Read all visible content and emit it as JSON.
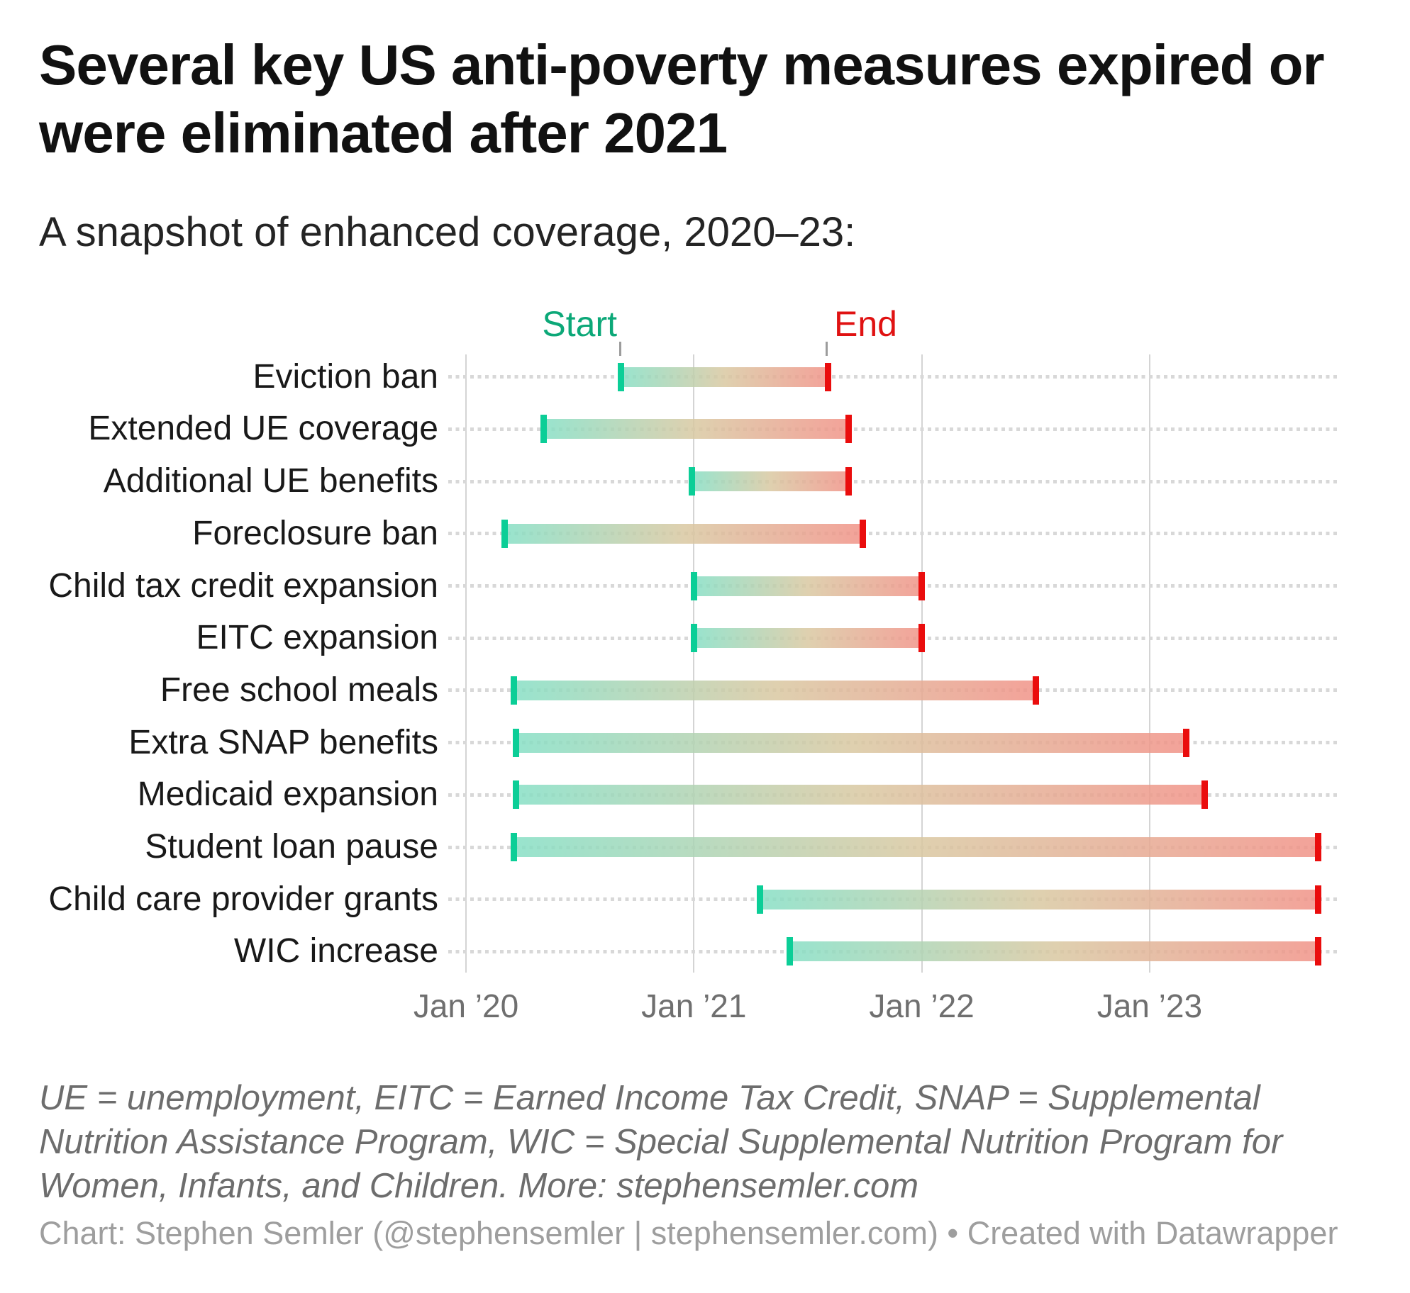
{
  "header": {
    "title": "Several key US anti-poverty measures expired or were eliminated after 2021",
    "subtitle": "A snapshot of enhanced coverage, 2020–23:"
  },
  "annotations": {
    "start_label": "Start",
    "end_label": "End"
  },
  "colors": {
    "start_cap": "#0bce97",
    "end_cap": "#ea0d0d",
    "start_label_text": "#0ca878",
    "end_label_text": "#e01212",
    "bar_gradient_start": "#86dfc5",
    "bar_gradient_mid": "#d9c8a1",
    "bar_gradient_end": "#f19287",
    "gridline": "#d4d4d4",
    "leader_dots": "#d8d8d8",
    "axis_text": "#6f6f6f",
    "row_label_text": "#191919"
  },
  "chart_data": {
    "type": "bar",
    "variant": "range (dumbbell / gantt): each row has a green start cap and red end cap joined by a green-to-red gradient bar",
    "x_axis": {
      "ticks": [
        {
          "label": "Jan ’20",
          "year": 2020
        },
        {
          "label": "Jan ’21",
          "year": 2021
        },
        {
          "label": "Jan ’22",
          "year": 2022
        },
        {
          "label": "Jan ’23",
          "year": 2023
        }
      ],
      "domain_note": "positions estimated from gridlines; values are decimal years",
      "grid": true
    },
    "rows": [
      {
        "label": "Eviction ban",
        "start": 2020.68,
        "end": 2021.59
      },
      {
        "label": "Extended UE coverage",
        "start": 2020.34,
        "end": 2021.68
      },
      {
        "label": "Additional UE benefits",
        "start": 2020.99,
        "end": 2021.68
      },
      {
        "label": "Foreclosure ban",
        "start": 2020.17,
        "end": 2021.74
      },
      {
        "label": "Child tax credit expansion",
        "start": 2021.0,
        "end": 2022.0
      },
      {
        "label": "EITC expansion",
        "start": 2021.0,
        "end": 2022.0
      },
      {
        "label": "Free school meals",
        "start": 2020.21,
        "end": 2022.5
      },
      {
        "label": "Extra SNAP benefits",
        "start": 2020.22,
        "end": 2023.16
      },
      {
        "label": "Medicaid expansion",
        "start": 2020.22,
        "end": 2023.24
      },
      {
        "label": "Student loan pause",
        "start": 2020.21,
        "end": 2023.74
      },
      {
        "label": "Child care provider grants",
        "start": 2021.29,
        "end": 2023.74
      },
      {
        "label": "WIC increase",
        "start": 2021.42,
        "end": 2023.74
      }
    ]
  },
  "footer": {
    "notes": "UE = unemployment, EITC = Earned Income Tax Credit, SNAP = Supplemental Nutrition Assistance Program, WIC = Special Supplemental Nutrition Program for Women, Infants, and Children. More: stephensemler.com",
    "credit": "Chart: Stephen Semler (@stephensemler | stephensemler.com) • Created with Datawrapper"
  }
}
